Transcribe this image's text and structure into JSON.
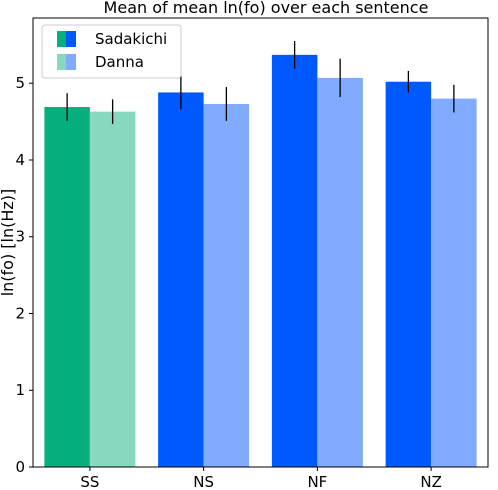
{
  "chart_data": {
    "type": "bar",
    "title": "Mean of mean ln(fo) over each sentence",
    "xlabel": "",
    "ylabel": "ln(fo) [ln(Hz)]",
    "categories": [
      "SS",
      "NS",
      "NF",
      "NZ"
    ],
    "ylim": [
      0,
      5.85
    ],
    "yticks": [
      0,
      1,
      2,
      3,
      4,
      5
    ],
    "grid": false,
    "legend_position": "top-left",
    "series": [
      {
        "name": "Sadakichi",
        "values": [
          4.69,
          4.88,
          5.37,
          5.02
        ],
        "errors": [
          0.18,
          0.22,
          0.18,
          0.14
        ]
      },
      {
        "name": "Danna",
        "values": [
          4.63,
          4.73,
          5.07,
          4.8
        ],
        "errors": [
          0.16,
          0.22,
          0.25,
          0.18
        ]
      }
    ],
    "colors": {
      "SS": [
        "#06b07e",
        "#86d8bf"
      ],
      "other": [
        "#0058ff",
        "#80abff"
      ]
    },
    "legend_swatches": {
      "Sadakichi": [
        "#06b07e",
        "#0058ff"
      ],
      "Danna": [
        "#86d8bf",
        "#80abff"
      ]
    }
  }
}
